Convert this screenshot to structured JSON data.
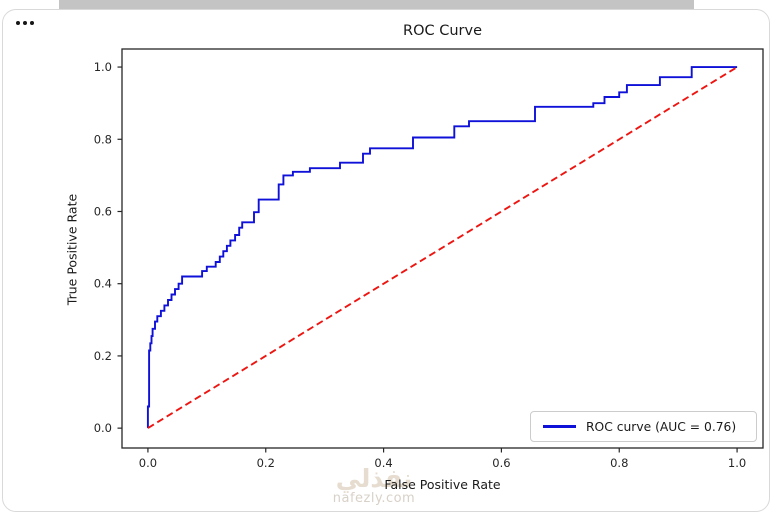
{
  "header": {
    "more_options_icon": "ellipsis"
  },
  "chart": {
    "title": "ROC Curve",
    "xlabel": "False Positive Rate",
    "ylabel": "True Positive Rate",
    "legend_label": "ROC curve (AUC = 0.76)"
  },
  "watermark": {
    "logo_text": "نفذلي",
    "site_text": "nafezly.com"
  },
  "colors": {
    "roc_line": "#0f10d8",
    "chance_line": "#ee1511",
    "axes": "#262626",
    "tick_text": "#262626",
    "legend_border": "#cccccc",
    "top_strip": "#c4c4c4",
    "card_border": "#d9d9d9",
    "watermark_logo": "#e6dccf",
    "watermark_site": "#d8d1c8"
  },
  "chart_data": {
    "type": "line",
    "title": "ROC Curve",
    "xlabel": "False Positive Rate",
    "ylabel": "True Positive Rate",
    "xlim": [
      -0.044,
      1.044
    ],
    "ylim": [
      -0.055,
      1.05
    ],
    "x_ticks": [
      0.0,
      0.2,
      0.4,
      0.6,
      0.8,
      1.0
    ],
    "y_ticks": [
      0.0,
      0.2,
      0.4,
      0.6,
      0.8,
      1.0
    ],
    "grid": false,
    "legend_position": "lower right",
    "series": [
      {
        "name": "ROC curve (AUC = 0.76)",
        "auc": 0.76,
        "line_style": "solid",
        "color_key": "roc_line",
        "points": [
          [
            0.0,
            0.0
          ],
          [
            0.0,
            0.06
          ],
          [
            0.002,
            0.06
          ],
          [
            0.002,
            0.215
          ],
          [
            0.004,
            0.215
          ],
          [
            0.004,
            0.235
          ],
          [
            0.006,
            0.235
          ],
          [
            0.006,
            0.255
          ],
          [
            0.008,
            0.255
          ],
          [
            0.008,
            0.275
          ],
          [
            0.012,
            0.275
          ],
          [
            0.012,
            0.295
          ],
          [
            0.016,
            0.295
          ],
          [
            0.016,
            0.31
          ],
          [
            0.022,
            0.31
          ],
          [
            0.022,
            0.325
          ],
          [
            0.028,
            0.325
          ],
          [
            0.028,
            0.34
          ],
          [
            0.034,
            0.34
          ],
          [
            0.034,
            0.355
          ],
          [
            0.04,
            0.355
          ],
          [
            0.04,
            0.37
          ],
          [
            0.046,
            0.37
          ],
          [
            0.046,
            0.385
          ],
          [
            0.052,
            0.385
          ],
          [
            0.052,
            0.4
          ],
          [
            0.058,
            0.4
          ],
          [
            0.058,
            0.42
          ],
          [
            0.092,
            0.42
          ],
          [
            0.092,
            0.435
          ],
          [
            0.1,
            0.435
          ],
          [
            0.1,
            0.447
          ],
          [
            0.115,
            0.447
          ],
          [
            0.115,
            0.46
          ],
          [
            0.122,
            0.46
          ],
          [
            0.122,
            0.475
          ],
          [
            0.128,
            0.475
          ],
          [
            0.128,
            0.49
          ],
          [
            0.134,
            0.49
          ],
          [
            0.134,
            0.505
          ],
          [
            0.14,
            0.505
          ],
          [
            0.14,
            0.52
          ],
          [
            0.148,
            0.52
          ],
          [
            0.148,
            0.535
          ],
          [
            0.155,
            0.535
          ],
          [
            0.155,
            0.555
          ],
          [
            0.16,
            0.555
          ],
          [
            0.16,
            0.57
          ],
          [
            0.18,
            0.57
          ],
          [
            0.18,
            0.598
          ],
          [
            0.188,
            0.598
          ],
          [
            0.188,
            0.633
          ],
          [
            0.222,
            0.633
          ],
          [
            0.222,
            0.675
          ],
          [
            0.23,
            0.675
          ],
          [
            0.23,
            0.7
          ],
          [
            0.246,
            0.7
          ],
          [
            0.246,
            0.71
          ],
          [
            0.275,
            0.71
          ],
          [
            0.275,
            0.72
          ],
          [
            0.326,
            0.72
          ],
          [
            0.326,
            0.735
          ],
          [
            0.365,
            0.735
          ],
          [
            0.365,
            0.76
          ],
          [
            0.377,
            0.76
          ],
          [
            0.377,
            0.775
          ],
          [
            0.45,
            0.775
          ],
          [
            0.45,
            0.805
          ],
          [
            0.52,
            0.805
          ],
          [
            0.52,
            0.836
          ],
          [
            0.545,
            0.836
          ],
          [
            0.545,
            0.85
          ],
          [
            0.657,
            0.85
          ],
          [
            0.657,
            0.89
          ],
          [
            0.756,
            0.89
          ],
          [
            0.756,
            0.9
          ],
          [
            0.775,
            0.9
          ],
          [
            0.775,
            0.917
          ],
          [
            0.8,
            0.917
          ],
          [
            0.8,
            0.93
          ],
          [
            0.813,
            0.93
          ],
          [
            0.813,
            0.95
          ],
          [
            0.869,
            0.95
          ],
          [
            0.869,
            0.972
          ],
          [
            0.923,
            0.972
          ],
          [
            0.923,
            1.0
          ],
          [
            1.0,
            1.0
          ]
        ]
      },
      {
        "name": "chance diagonal",
        "line_style": "dashed",
        "color_key": "chance_line",
        "points": [
          [
            0,
            0
          ],
          [
            1,
            1
          ]
        ]
      }
    ]
  }
}
